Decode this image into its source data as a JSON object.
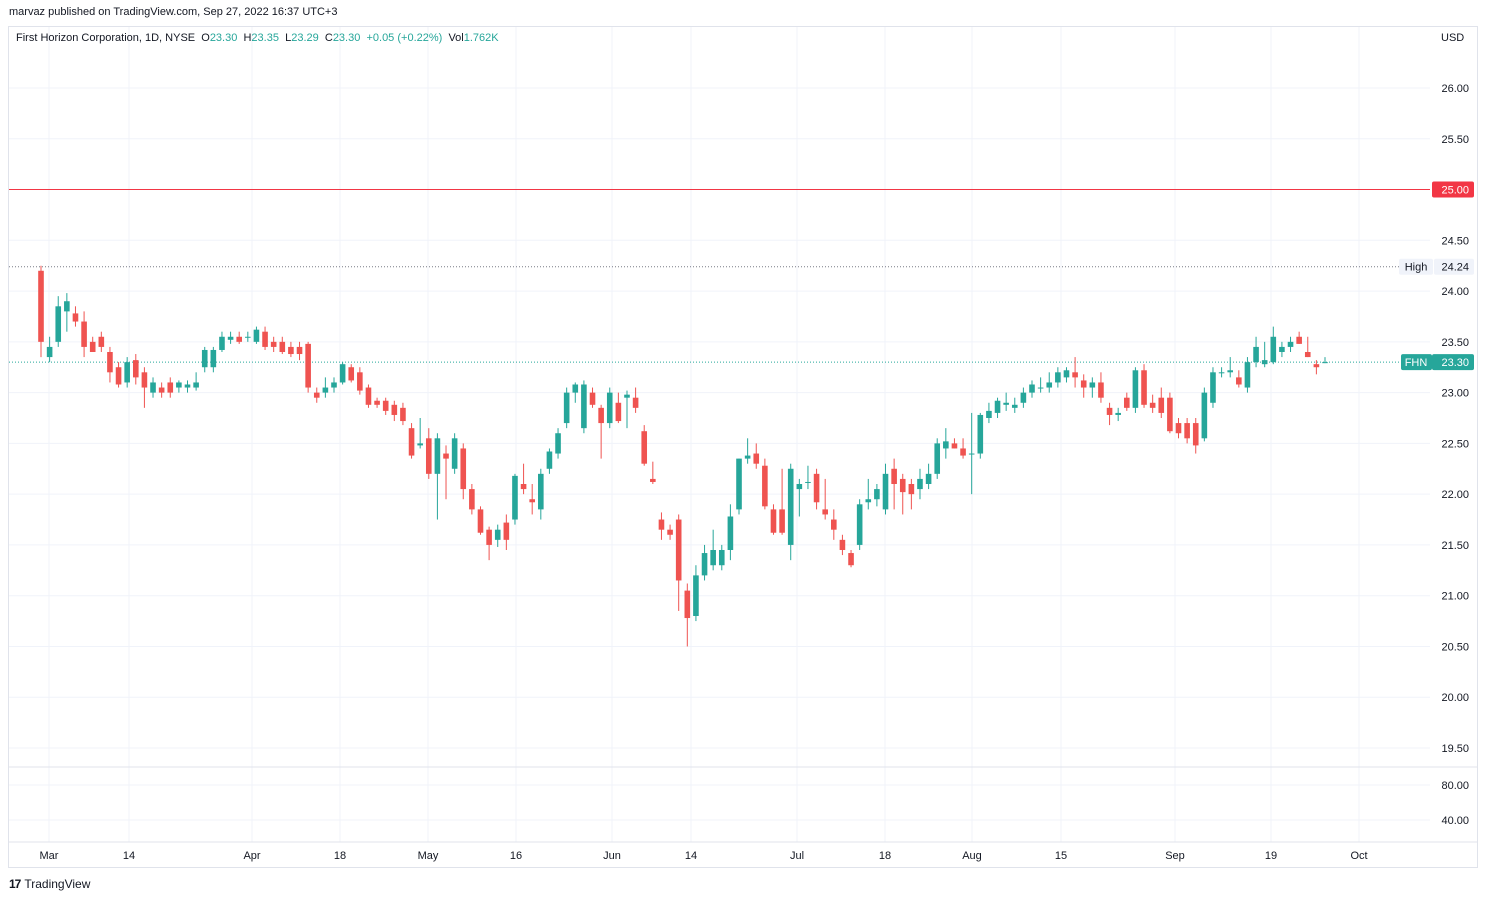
{
  "publish_line": "marvaz published on TradingView.com, Sep 27, 2022 16:37 UTC+3",
  "legend": {
    "title": "First Horizon Corporation, 1D, NYSE",
    "o_label": "O",
    "o_value": "23.30",
    "h_label": "H",
    "h_value": "23.35",
    "l_label": "L",
    "l_value": "23.29",
    "c_label": "C",
    "c_value": "23.30",
    "change": "+0.05 (+0.22%)",
    "vol_label": "Vol",
    "vol_value": "1.762K"
  },
  "currency": "USD",
  "footer": {
    "logo_glyph": "17",
    "brand": "TradingView"
  },
  "colors": {
    "up": "#26a69a",
    "down": "#ef5350",
    "resistance": "#f23645",
    "grid": "#f0f3fa",
    "axis_text": "#131722"
  },
  "chart_data": {
    "type": "candlestick",
    "symbol": "FHN",
    "ylim": [
      19.3,
      26.5
    ],
    "y_ticks": [
      "26.00",
      "25.50",
      "24.50",
      "24.00",
      "23.50",
      "23.00",
      "22.50",
      "22.00",
      "21.50",
      "21.00",
      "20.50",
      "20.00",
      "19.50"
    ],
    "volume_ticks": [
      "80.00",
      "40.00"
    ],
    "x_ticks": [
      "Mar",
      "14",
      "Apr",
      "18",
      "May",
      "16",
      "Jun",
      "14",
      "Jul",
      "18",
      "Aug",
      "15",
      "Sep",
      "19",
      "Oct"
    ],
    "horizontal_line": {
      "value": 25.0,
      "label": "25.00"
    },
    "high_line": {
      "value": 24.24,
      "label": "High",
      "value_label": "24.24"
    },
    "last_price": {
      "value": 23.3,
      "symbol_label": "FHN",
      "value_label": "23.30"
    },
    "candles": [
      {
        "o": 24.2,
        "h": 24.25,
        "l": 23.35,
        "c": 23.5
      },
      {
        "o": 23.35,
        "h": 23.55,
        "l": 23.3,
        "c": 23.45
      },
      {
        "o": 23.5,
        "h": 23.95,
        "l": 23.45,
        "c": 23.85
      },
      {
        "o": 23.8,
        "h": 23.98,
        "l": 23.6,
        "c": 23.9
      },
      {
        "o": 23.78,
        "h": 23.85,
        "l": 23.65,
        "c": 23.7
      },
      {
        "o": 23.7,
        "h": 23.8,
        "l": 23.35,
        "c": 23.45
      },
      {
        "o": 23.5,
        "h": 23.55,
        "l": 23.4,
        "c": 23.4
      },
      {
        "o": 23.55,
        "h": 23.6,
        "l": 23.4,
        "c": 23.45
      },
      {
        "o": 23.4,
        "h": 23.45,
        "l": 23.1,
        "c": 23.2
      },
      {
        "o": 23.25,
        "h": 23.3,
        "l": 23.05,
        "c": 23.08
      },
      {
        "o": 23.1,
        "h": 23.35,
        "l": 23.05,
        "c": 23.3
      },
      {
        "o": 23.32,
        "h": 23.38,
        "l": 23.08,
        "c": 23.15
      },
      {
        "o": 23.2,
        "h": 23.25,
        "l": 22.85,
        "c": 23.05
      },
      {
        "o": 23.0,
        "h": 23.15,
        "l": 22.95,
        "c": 23.1
      },
      {
        "o": 23.05,
        "h": 23.1,
        "l": 22.95,
        "c": 23.0
      },
      {
        "o": 23.1,
        "h": 23.15,
        "l": 22.95,
        "c": 23.0
      },
      {
        "o": 23.05,
        "h": 23.12,
        "l": 23.0,
        "c": 23.1
      },
      {
        "o": 23.05,
        "h": 23.12,
        "l": 23.0,
        "c": 23.08
      },
      {
        "o": 23.05,
        "h": 23.2,
        "l": 23.02,
        "c": 23.1
      },
      {
        "o": 23.25,
        "h": 23.45,
        "l": 23.2,
        "c": 23.42
      },
      {
        "o": 23.25,
        "h": 23.45,
        "l": 23.2,
        "c": 23.42
      },
      {
        "o": 23.42,
        "h": 23.6,
        "l": 23.4,
        "c": 23.55
      },
      {
        "o": 23.52,
        "h": 23.6,
        "l": 23.48,
        "c": 23.55
      },
      {
        "o": 23.55,
        "h": 23.6,
        "l": 23.48,
        "c": 23.5
      },
      {
        "o": 23.55,
        "h": 23.6,
        "l": 23.5,
        "c": 23.55
      },
      {
        "o": 23.5,
        "h": 23.65,
        "l": 23.48,
        "c": 23.62
      },
      {
        "o": 23.6,
        "h": 23.65,
        "l": 23.42,
        "c": 23.45
      },
      {
        "o": 23.5,
        "h": 23.55,
        "l": 23.4,
        "c": 23.45
      },
      {
        "o": 23.5,
        "h": 23.55,
        "l": 23.38,
        "c": 23.4
      },
      {
        "o": 23.45,
        "h": 23.5,
        "l": 23.35,
        "c": 23.38
      },
      {
        "o": 23.45,
        "h": 23.5,
        "l": 23.32,
        "c": 23.38
      },
      {
        "o": 23.48,
        "h": 23.5,
        "l": 23.0,
        "c": 23.05
      },
      {
        "o": 23.0,
        "h": 23.05,
        "l": 22.9,
        "c": 22.95
      },
      {
        "o": 23.0,
        "h": 23.15,
        "l": 22.95,
        "c": 23.05
      },
      {
        "o": 23.05,
        "h": 23.15,
        "l": 23.0,
        "c": 23.1
      },
      {
        "o": 23.1,
        "h": 23.3,
        "l": 23.08,
        "c": 23.28
      },
      {
        "o": 23.25,
        "h": 23.28,
        "l": 23.1,
        "c": 23.12
      },
      {
        "o": 23.2,
        "h": 23.25,
        "l": 22.98,
        "c": 23.02
      },
      {
        "o": 23.05,
        "h": 23.08,
        "l": 22.85,
        "c": 22.88
      },
      {
        "o": 22.92,
        "h": 22.95,
        "l": 22.85,
        "c": 22.88
      },
      {
        "o": 22.92,
        "h": 22.95,
        "l": 22.78,
        "c": 22.82
      },
      {
        "o": 22.88,
        "h": 22.92,
        "l": 22.72,
        "c": 22.78
      },
      {
        "o": 22.85,
        "h": 22.9,
        "l": 22.68,
        "c": 22.72
      },
      {
        "o": 22.65,
        "h": 22.7,
        "l": 22.35,
        "c": 22.38
      },
      {
        "o": 22.48,
        "h": 22.75,
        "l": 22.45,
        "c": 22.5
      },
      {
        "o": 22.55,
        "h": 22.65,
        "l": 22.15,
        "c": 22.2
      },
      {
        "o": 22.2,
        "h": 22.6,
        "l": 21.75,
        "c": 22.55
      },
      {
        "o": 22.4,
        "h": 22.48,
        "l": 21.95,
        "c": 22.35
      },
      {
        "o": 22.25,
        "h": 22.6,
        "l": 22.2,
        "c": 22.55
      },
      {
        "o": 22.45,
        "h": 22.5,
        "l": 21.95,
        "c": 22.05
      },
      {
        "o": 22.05,
        "h": 22.1,
        "l": 21.8,
        "c": 21.85
      },
      {
        "o": 21.85,
        "h": 21.88,
        "l": 21.6,
        "c": 21.62
      },
      {
        "o": 21.65,
        "h": 21.68,
        "l": 21.35,
        "c": 21.5
      },
      {
        "o": 21.55,
        "h": 21.7,
        "l": 21.48,
        "c": 21.65
      },
      {
        "o": 21.72,
        "h": 21.8,
        "l": 21.45,
        "c": 21.55
      },
      {
        "o": 21.75,
        "h": 22.2,
        "l": 21.7,
        "c": 22.18
      },
      {
        "o": 22.1,
        "h": 22.3,
        "l": 22.0,
        "c": 22.05
      },
      {
        "o": 21.95,
        "h": 22.1,
        "l": 21.8,
        "c": 21.92
      },
      {
        "o": 21.85,
        "h": 22.25,
        "l": 21.75,
        "c": 22.2
      },
      {
        "o": 22.25,
        "h": 22.45,
        "l": 22.2,
        "c": 22.42
      },
      {
        "o": 22.4,
        "h": 22.65,
        "l": 22.35,
        "c": 22.6
      },
      {
        "o": 22.7,
        "h": 23.05,
        "l": 22.65,
        "c": 23.0
      },
      {
        "o": 23.0,
        "h": 23.1,
        "l": 22.9,
        "c": 23.08
      },
      {
        "o": 22.65,
        "h": 23.12,
        "l": 22.6,
        "c": 23.08
      },
      {
        "o": 23.0,
        "h": 23.05,
        "l": 22.85,
        "c": 22.88
      },
      {
        "o": 22.85,
        "h": 22.88,
        "l": 22.35,
        "c": 22.7
      },
      {
        "o": 22.7,
        "h": 23.05,
        "l": 22.65,
        "c": 23.0
      },
      {
        "o": 22.9,
        "h": 23.0,
        "l": 22.7,
        "c": 22.72
      },
      {
        "o": 22.95,
        "h": 23.02,
        "l": 22.65,
        "c": 22.98
      },
      {
        "o": 22.95,
        "h": 23.05,
        "l": 22.8,
        "c": 22.85
      },
      {
        "o": 22.62,
        "h": 22.68,
        "l": 22.28,
        "c": 22.3
      },
      {
        "o": 22.15,
        "h": 22.32,
        "l": 22.1,
        "c": 22.12
      },
      {
        "o": 21.75,
        "h": 21.82,
        "l": 21.55,
        "c": 21.65
      },
      {
        "o": 21.65,
        "h": 21.7,
        "l": 21.55,
        "c": 21.6
      },
      {
        "o": 21.75,
        "h": 21.8,
        "l": 20.85,
        "c": 21.15
      },
      {
        "o": 21.05,
        "h": 21.12,
        "l": 20.5,
        "c": 20.78
      },
      {
        "o": 20.8,
        "h": 21.3,
        "l": 20.75,
        "c": 21.2
      },
      {
        "o": 21.2,
        "h": 21.5,
        "l": 21.15,
        "c": 21.42
      },
      {
        "o": 21.3,
        "h": 21.65,
        "l": 21.25,
        "c": 21.45
      },
      {
        "o": 21.3,
        "h": 21.5,
        "l": 21.25,
        "c": 21.45
      },
      {
        "o": 21.45,
        "h": 21.9,
        "l": 21.35,
        "c": 21.78
      },
      {
        "o": 21.85,
        "h": 22.35,
        "l": 21.8,
        "c": 22.35
      },
      {
        "o": 22.35,
        "h": 22.55,
        "l": 22.3,
        "c": 22.38
      },
      {
        "o": 22.4,
        "h": 22.5,
        "l": 22.25,
        "c": 22.3
      },
      {
        "o": 22.28,
        "h": 22.35,
        "l": 21.85,
        "c": 21.88
      },
      {
        "o": 21.85,
        "h": 21.9,
        "l": 21.6,
        "c": 21.62
      },
      {
        "o": 21.85,
        "h": 22.25,
        "l": 21.6,
        "c": 21.62
      },
      {
        "o": 21.5,
        "h": 22.3,
        "l": 21.35,
        "c": 22.25
      },
      {
        "o": 22.05,
        "h": 22.15,
        "l": 21.78,
        "c": 22.1
      },
      {
        "o": 22.12,
        "h": 22.28,
        "l": 22.05,
        "c": 22.12
      },
      {
        "o": 22.2,
        "h": 22.25,
        "l": 21.85,
        "c": 21.92
      },
      {
        "o": 21.85,
        "h": 22.15,
        "l": 21.75,
        "c": 21.8
      },
      {
        "o": 21.75,
        "h": 21.85,
        "l": 21.55,
        "c": 21.65
      },
      {
        "o": 21.55,
        "h": 21.6,
        "l": 21.4,
        "c": 21.45
      },
      {
        "o": 21.42,
        "h": 21.45,
        "l": 21.28,
        "c": 21.3
      },
      {
        "o": 21.5,
        "h": 21.95,
        "l": 21.45,
        "c": 21.9
      },
      {
        "o": 21.92,
        "h": 22.15,
        "l": 21.85,
        "c": 21.95
      },
      {
        "o": 21.95,
        "h": 22.1,
        "l": 21.88,
        "c": 22.05
      },
      {
        "o": 21.85,
        "h": 22.3,
        "l": 21.8,
        "c": 22.2
      },
      {
        "o": 22.25,
        "h": 22.35,
        "l": 21.85,
        "c": 22.1
      },
      {
        "o": 22.15,
        "h": 22.2,
        "l": 21.8,
        "c": 22.02
      },
      {
        "o": 22.1,
        "h": 22.15,
        "l": 21.85,
        "c": 22.0
      },
      {
        "o": 22.05,
        "h": 22.25,
        "l": 21.95,
        "c": 22.15
      },
      {
        "o": 22.1,
        "h": 22.3,
        "l": 22.05,
        "c": 22.2
      },
      {
        "o": 22.2,
        "h": 22.55,
        "l": 22.15,
        "c": 22.5
      },
      {
        "o": 22.45,
        "h": 22.65,
        "l": 22.35,
        "c": 22.52
      },
      {
        "o": 22.5,
        "h": 22.55,
        "l": 22.45,
        "c": 22.45
      },
      {
        "o": 22.45,
        "h": 22.55,
        "l": 22.35,
        "c": 22.38
      },
      {
        "o": 22.4,
        "h": 22.8,
        "l": 22.0,
        "c": 22.4
      },
      {
        "o": 22.4,
        "h": 22.8,
        "l": 22.35,
        "c": 22.78
      },
      {
        "o": 22.75,
        "h": 22.9,
        "l": 22.7,
        "c": 22.82
      },
      {
        "o": 22.8,
        "h": 22.95,
        "l": 22.75,
        "c": 22.92
      },
      {
        "o": 22.88,
        "h": 23.0,
        "l": 22.82,
        "c": 22.9
      },
      {
        "o": 22.85,
        "h": 22.95,
        "l": 22.8,
        "c": 22.88
      },
      {
        "o": 22.9,
        "h": 23.05,
        "l": 22.85,
        "c": 23.0
      },
      {
        "o": 23.0,
        "h": 23.12,
        "l": 22.95,
        "c": 23.08
      },
      {
        "o": 23.05,
        "h": 23.15,
        "l": 23.0,
        "c": 23.05
      },
      {
        "o": 23.05,
        "h": 23.2,
        "l": 23.0,
        "c": 23.1
      },
      {
        "o": 23.1,
        "h": 23.25,
        "l": 23.05,
        "c": 23.2
      },
      {
        "o": 23.15,
        "h": 23.25,
        "l": 23.1,
        "c": 23.22
      },
      {
        "o": 23.2,
        "h": 23.35,
        "l": 23.05,
        "c": 23.15
      },
      {
        "o": 23.12,
        "h": 23.18,
        "l": 22.95,
        "c": 23.05
      },
      {
        "o": 23.05,
        "h": 23.15,
        "l": 22.95,
        "c": 23.1
      },
      {
        "o": 23.1,
        "h": 23.2,
        "l": 22.9,
        "c": 22.95
      },
      {
        "o": 22.85,
        "h": 22.9,
        "l": 22.68,
        "c": 22.78
      },
      {
        "o": 22.78,
        "h": 22.85,
        "l": 22.72,
        "c": 22.8
      },
      {
        "o": 22.95,
        "h": 23.0,
        "l": 22.82,
        "c": 22.85
      },
      {
        "o": 22.85,
        "h": 23.25,
        "l": 22.8,
        "c": 23.22
      },
      {
        "o": 23.22,
        "h": 23.28,
        "l": 22.85,
        "c": 22.88
      },
      {
        "o": 22.9,
        "h": 22.98,
        "l": 22.8,
        "c": 22.85
      },
      {
        "o": 22.95,
        "h": 23.05,
        "l": 22.75,
        "c": 22.8
      },
      {
        "o": 22.95,
        "h": 23.0,
        "l": 22.6,
        "c": 22.62
      },
      {
        "o": 22.7,
        "h": 22.75,
        "l": 22.55,
        "c": 22.6
      },
      {
        "o": 22.7,
        "h": 22.75,
        "l": 22.5,
        "c": 22.55
      },
      {
        "o": 22.7,
        "h": 22.75,
        "l": 22.4,
        "c": 22.48
      },
      {
        "o": 22.55,
        "h": 23.05,
        "l": 22.52,
        "c": 23.0
      },
      {
        "o": 22.9,
        "h": 23.25,
        "l": 22.85,
        "c": 23.2
      },
      {
        "o": 23.2,
        "h": 23.25,
        "l": 23.15,
        "c": 23.2
      },
      {
        "o": 23.2,
        "h": 23.35,
        "l": 23.15,
        "c": 23.22
      },
      {
        "o": 23.15,
        "h": 23.22,
        "l": 23.05,
        "c": 23.08
      },
      {
        "o": 23.05,
        "h": 23.35,
        "l": 23.0,
        "c": 23.3
      },
      {
        "o": 23.3,
        "h": 23.55,
        "l": 23.25,
        "c": 23.45
      },
      {
        "o": 23.28,
        "h": 23.5,
        "l": 23.25,
        "c": 23.32
      },
      {
        "o": 23.3,
        "h": 23.65,
        "l": 23.28,
        "c": 23.55
      },
      {
        "o": 23.4,
        "h": 23.5,
        "l": 23.35,
        "c": 23.45
      },
      {
        "o": 23.45,
        "h": 23.55,
        "l": 23.4,
        "c": 23.5
      },
      {
        "o": 23.55,
        "h": 23.6,
        "l": 23.48,
        "c": 23.48
      },
      {
        "o": 23.4,
        "h": 23.55,
        "l": 23.35,
        "c": 23.35
      },
      {
        "o": 23.28,
        "h": 23.32,
        "l": 23.18,
        "c": 23.25
      },
      {
        "o": 23.3,
        "h": 23.35,
        "l": 23.29,
        "c": 23.3
      }
    ]
  }
}
